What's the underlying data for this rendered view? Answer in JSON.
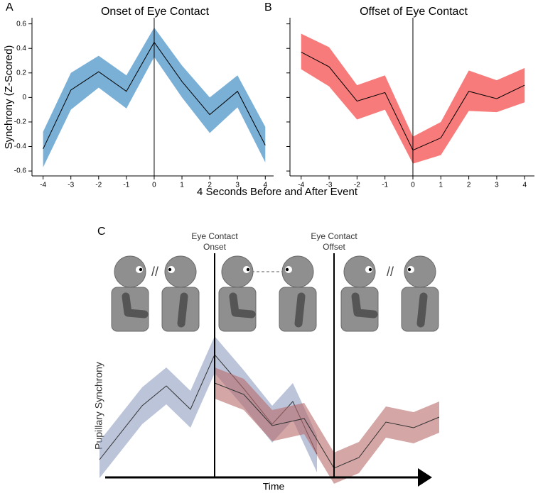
{
  "chart_data": [
    {
      "type": "line",
      "panel": "A",
      "title": "Onset of Eye Contact",
      "ylabel": "Synchrony (Z-Scored)",
      "xlabel": "4 Seconds Before and After Event",
      "x": [
        -4,
        -3,
        -2,
        -1,
        0,
        1,
        2,
        3,
        4
      ],
      "xlim": [
        -4.4,
        4.3
      ],
      "xticks": [
        -4,
        -3,
        -2,
        -1,
        0,
        1,
        2,
        3,
        4
      ],
      "ylim": [
        -0.64,
        0.65
      ],
      "yticks": [
        -0.6,
        -0.4,
        -0.2,
        0,
        0.2,
        0.4,
        0.6
      ],
      "vline": 0,
      "series": [
        {
          "color": "#7aafd6",
          "line_color": "#000000",
          "values": [
            -0.42,
            0.06,
            0.21,
            0.05,
            0.45,
            0.13,
            -0.14,
            0.05,
            -0.39
          ],
          "upper": [
            -0.28,
            0.2,
            0.34,
            0.18,
            0.57,
            0.26,
            0.0,
            0.18,
            -0.24
          ],
          "lower": [
            -0.57,
            -0.1,
            0.08,
            -0.09,
            0.33,
            0.0,
            -0.29,
            -0.08,
            -0.53
          ]
        }
      ]
    },
    {
      "type": "line",
      "panel": "B",
      "title": "Offset of Eye Contact",
      "x": [
        -4,
        -3,
        -2,
        -1,
        0,
        1,
        2,
        3,
        4
      ],
      "xlim": [
        -4.4,
        4.35
      ],
      "xticks": [
        -4,
        -3,
        -2,
        -1,
        0,
        1,
        2,
        3,
        4
      ],
      "ylim": [
        -0.64,
        0.65
      ],
      "vline": 0,
      "series": [
        {
          "color": "#f77b7b",
          "line_color": "#000000",
          "values": [
            0.37,
            0.25,
            -0.03,
            0.04,
            -0.43,
            -0.33,
            0.05,
            -0.01,
            0.1
          ],
          "upper": [
            0.52,
            0.41,
            0.1,
            0.18,
            -0.32,
            -0.2,
            0.22,
            0.14,
            0.24
          ],
          "lower": [
            0.23,
            0.09,
            -0.18,
            -0.1,
            -0.54,
            -0.47,
            -0.11,
            -0.12,
            -0.04
          ]
        }
      ]
    }
  ],
  "panel_c": {
    "label": "C",
    "onset": [
      "Eye Contact",
      "Onset"
    ],
    "offset": [
      "Eye Contact",
      "Offset"
    ],
    "separators": [
      "//",
      "//"
    ],
    "ylabel": "Pupillary Synchrony",
    "xlabel": "Time"
  }
}
